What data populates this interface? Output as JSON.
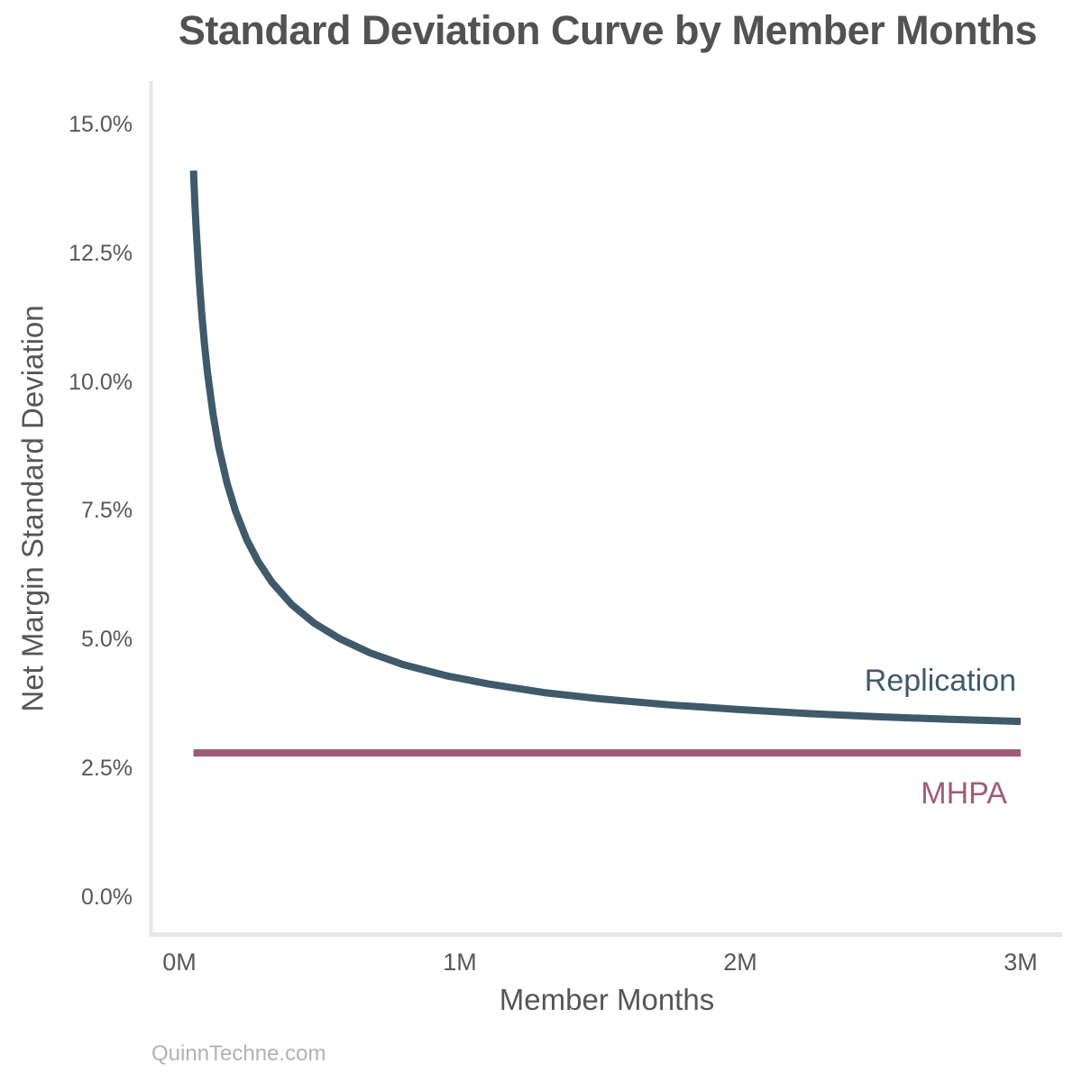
{
  "page": {
    "watermark": "QuinnTechne.com"
  },
  "chart_data": {
    "type": "line",
    "title": "Standard Deviation Curve by Member Months",
    "xlabel": "Member Months",
    "ylabel": "Net Margin Standard Deviation",
    "grid": false,
    "legend_position": "inline labels at right end of each line",
    "xtick_labels": [
      "0M",
      "1M",
      "2M",
      "3M"
    ],
    "xtick_values": [
      0,
      1,
      2,
      3
    ],
    "ytick_labels": [
      "0.0%",
      "2.5%",
      "5.0%",
      "7.5%",
      "10.0%",
      "12.5%",
      "15.0%"
    ],
    "ytick_values": [
      0,
      2.5,
      5.0,
      7.5,
      10.0,
      12.5,
      15.0
    ],
    "x_range_member_months_millions": [
      0,
      3.15
    ],
    "y_range_pct": [
      0,
      15.8
    ],
    "series": [
      {
        "name": "Replication",
        "type": "curve",
        "color": "#3e5a6b",
        "points_x_millions": [
          0.05,
          0.055,
          0.06,
          0.07,
          0.08,
          0.09,
          0.1,
          0.12,
          0.14,
          0.17,
          0.2,
          0.24,
          0.28,
          0.33,
          0.4,
          0.48,
          0.57,
          0.68,
          0.8,
          0.95,
          1.1,
          1.3,
          1.5,
          1.75,
          2.0,
          2.25,
          2.5,
          2.75,
          3.0
        ],
        "points_y_pct": [
          14.1,
          13.47,
          12.93,
          12.02,
          11.29,
          10.69,
          10.18,
          9.37,
          8.74,
          8.03,
          7.49,
          6.94,
          6.52,
          6.11,
          5.68,
          5.32,
          5.02,
          4.74,
          4.51,
          4.3,
          4.14,
          3.97,
          3.85,
          3.73,
          3.64,
          3.56,
          3.5,
          3.45,
          3.41
        ]
      },
      {
        "name": "MHPA",
        "type": "hline",
        "color": "#a15b77",
        "y_pct": 2.8,
        "x_start_millions": 0.05,
        "x_end_millions": 3.0
      }
    ]
  }
}
